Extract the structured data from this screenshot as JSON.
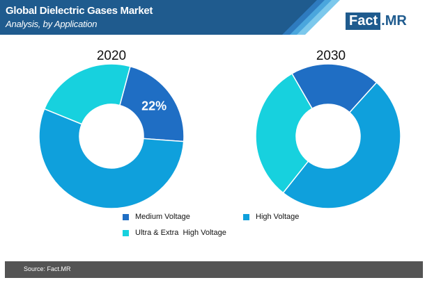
{
  "header": {
    "title": "Global Dielectric Gases Market",
    "subtitle": "Analysis, by Application",
    "logo_main": "Fact",
    "logo_dot": ".",
    "logo_mr": "MR"
  },
  "chart_data": [
    {
      "type": "pie",
      "title": "2020",
      "donut": true,
      "slices": [
        {
          "name": "Medium Voltage",
          "value": 22,
          "label": "22%",
          "color": "#1f6ec4"
        },
        {
          "name": "High Voltage",
          "value": 55,
          "color": "#0fa0dc"
        },
        {
          "name": "Ultra & Extra  High Voltage",
          "value": 23,
          "color": "#17d1de"
        }
      ]
    },
    {
      "type": "pie",
      "title": "2030",
      "donut": true,
      "slices": [
        {
          "name": "Medium Voltage",
          "value": 20,
          "color": "#1f6ec4"
        },
        {
          "name": "High Voltage",
          "value": 49,
          "color": "#0fa0dc"
        },
        {
          "name": "Ultra & Extra  High Voltage",
          "value": 31,
          "color": "#17d1de"
        }
      ]
    }
  ],
  "legend": [
    {
      "label": "Medium Voltage",
      "color": "#1f6ec4"
    },
    {
      "label": "High Voltage",
      "color": "#0fa0dc"
    },
    {
      "label": "Ultra & Extra  High Voltage",
      "color": "#17d1de"
    }
  ],
  "footer": {
    "source": "Source: Fact.MR"
  },
  "colors": {
    "header_band": "#1f5b8e",
    "footer_bar": "#545454"
  }
}
